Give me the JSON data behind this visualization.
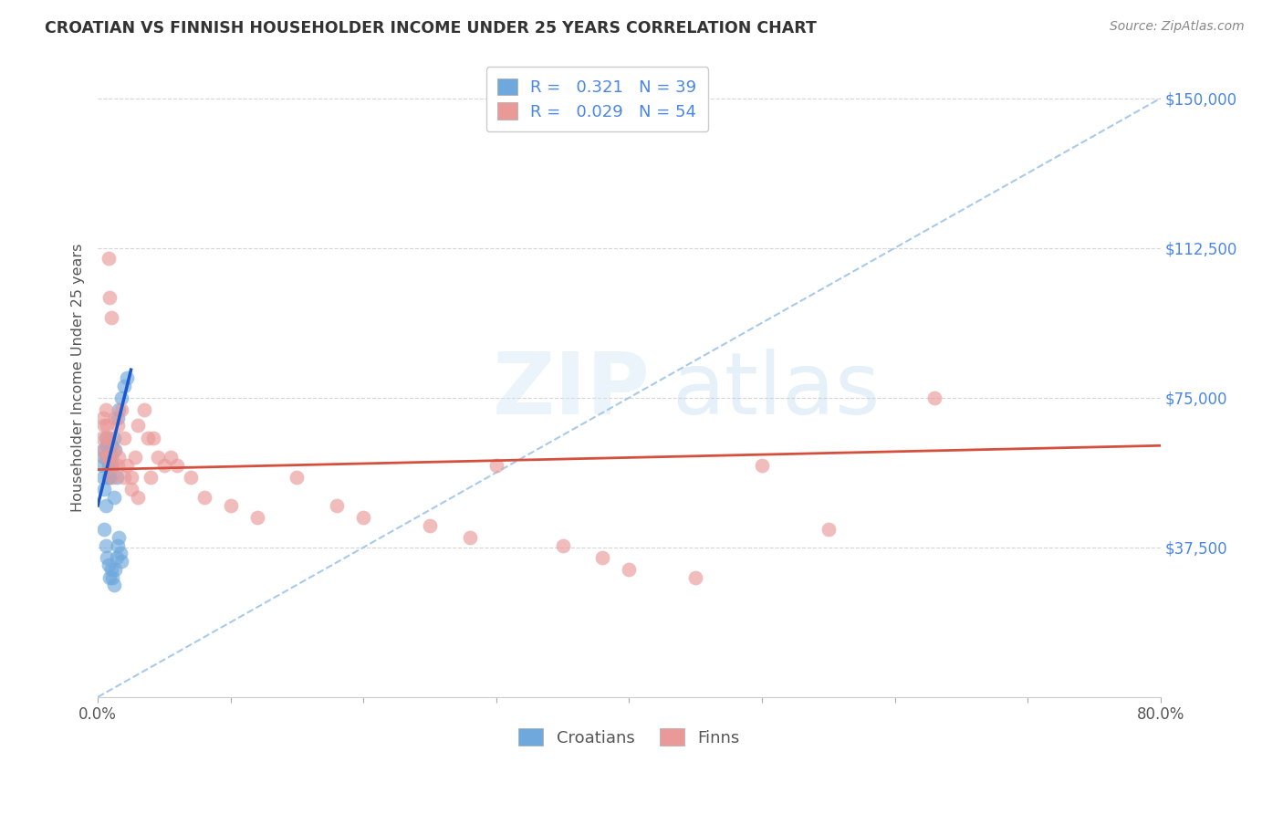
{
  "title": "CROATIAN VS FINNISH HOUSEHOLDER INCOME UNDER 25 YEARS CORRELATION CHART",
  "source": "Source: ZipAtlas.com",
  "ylabel": "Householder Income Under 25 years",
  "croatian_R": 0.321,
  "croatian_N": 39,
  "finnish_R": 0.029,
  "finnish_N": 54,
  "xlim": [
    0.0,
    0.8
  ],
  "ylim": [
    0,
    160000
  ],
  "watermark_zip": "ZIP",
  "watermark_atlas": "atlas",
  "croatian_color": "#6fa8dc",
  "finnish_color": "#ea9999",
  "croatian_line_color": "#1a56cc",
  "finnish_line_color": "#d44f3e",
  "diagonal_color": "#9fc5e8",
  "background_color": "#ffffff",
  "grid_color": "#cccccc",
  "label_color": "#4a86e8",
  "croatian_x": [
    0.003,
    0.004,
    0.004,
    0.005,
    0.005,
    0.006,
    0.006,
    0.007,
    0.007,
    0.008,
    0.008,
    0.009,
    0.009,
    0.01,
    0.01,
    0.011,
    0.012,
    0.012,
    0.013,
    0.014,
    0.015,
    0.016,
    0.018,
    0.02,
    0.022,
    0.005,
    0.006,
    0.007,
    0.008,
    0.009,
    0.01,
    0.011,
    0.012,
    0.013,
    0.014,
    0.015,
    0.016,
    0.017,
    0.018
  ],
  "croatian_y": [
    58000,
    55000,
    62000,
    52000,
    60000,
    48000,
    65000,
    60000,
    63000,
    55000,
    58000,
    60000,
    55000,
    63000,
    60000,
    58000,
    65000,
    50000,
    62000,
    55000,
    70000,
    72000,
    75000,
    78000,
    80000,
    42000,
    38000,
    35000,
    33000,
    30000,
    32000,
    30000,
    28000,
    32000,
    35000,
    38000,
    40000,
    36000,
    34000
  ],
  "finnish_x": [
    0.003,
    0.004,
    0.005,
    0.005,
    0.006,
    0.006,
    0.007,
    0.007,
    0.008,
    0.008,
    0.009,
    0.009,
    0.01,
    0.01,
    0.011,
    0.012,
    0.013,
    0.015,
    0.016,
    0.018,
    0.02,
    0.022,
    0.025,
    0.028,
    0.03,
    0.035,
    0.038,
    0.04,
    0.042,
    0.045,
    0.05,
    0.055,
    0.06,
    0.07,
    0.08,
    0.1,
    0.12,
    0.15,
    0.18,
    0.2,
    0.25,
    0.28,
    0.3,
    0.35,
    0.38,
    0.4,
    0.45,
    0.5,
    0.55,
    0.63,
    0.015,
    0.02,
    0.025,
    0.03
  ],
  "finnish_y": [
    65000,
    70000,
    68000,
    62000,
    72000,
    60000,
    68000,
    65000,
    110000,
    60000,
    100000,
    65000,
    95000,
    58000,
    55000,
    62000,
    70000,
    68000,
    60000,
    72000,
    65000,
    58000,
    55000,
    60000,
    68000,
    72000,
    65000,
    55000,
    65000,
    60000,
    58000,
    60000,
    58000,
    55000,
    50000,
    48000,
    45000,
    55000,
    48000,
    45000,
    43000,
    40000,
    58000,
    38000,
    35000,
    32000,
    30000,
    58000,
    42000,
    75000,
    58000,
    55000,
    52000,
    50000
  ]
}
